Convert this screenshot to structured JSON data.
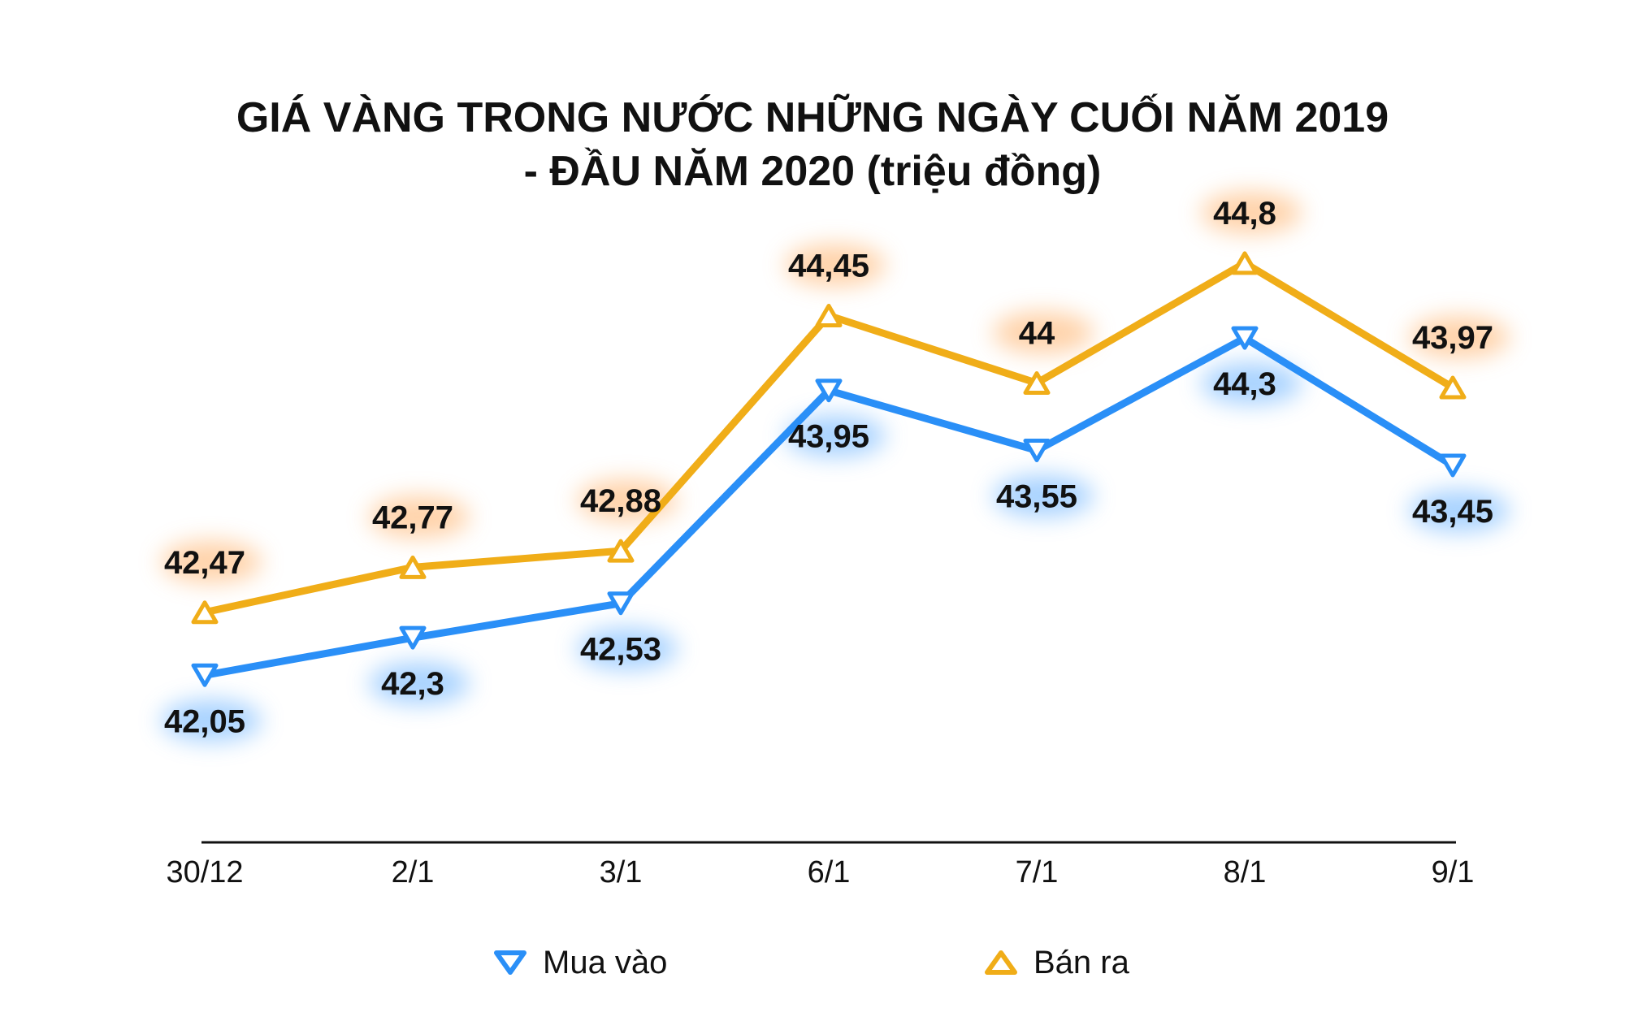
{
  "chart_data": {
    "type": "line",
    "title_lines": [
      "GIÁ VÀNG TRONG NƯỚC NHỮNG NGÀY CUỐI NĂM 2019",
      "- ĐẦU NĂM 2020 (triệu đồng)"
    ],
    "categories": [
      "30/12",
      "2/1",
      "3/1",
      "6/1",
      "7/1",
      "8/1",
      "9/1"
    ],
    "series": [
      {
        "name": "Mua vào",
        "color": "#2a8ff7",
        "marker": "triangle-down",
        "values": [
          42.05,
          42.3,
          42.53,
          43.95,
          43.55,
          44.3,
          43.45
        ],
        "labels": [
          "42,05",
          "42,3",
          "42,53",
          "43,95",
          "43,55",
          "44,3",
          "43,45"
        ],
        "label_position": "below"
      },
      {
        "name": "Bán ra",
        "color": "#f0ad18",
        "marker": "triangle-up",
        "values": [
          42.47,
          42.77,
          42.88,
          44.45,
          44.0,
          44.8,
          43.97
        ],
        "labels": [
          "42,47",
          "42,77",
          "42,88",
          "44,45",
          "44",
          "44,8",
          "43,97"
        ],
        "label_position": "above"
      }
    ],
    "xlabel": "",
    "ylabel": "",
    "ylim": [
      41.0,
      45.0
    ],
    "grid": false,
    "legend_position": "bottom"
  }
}
